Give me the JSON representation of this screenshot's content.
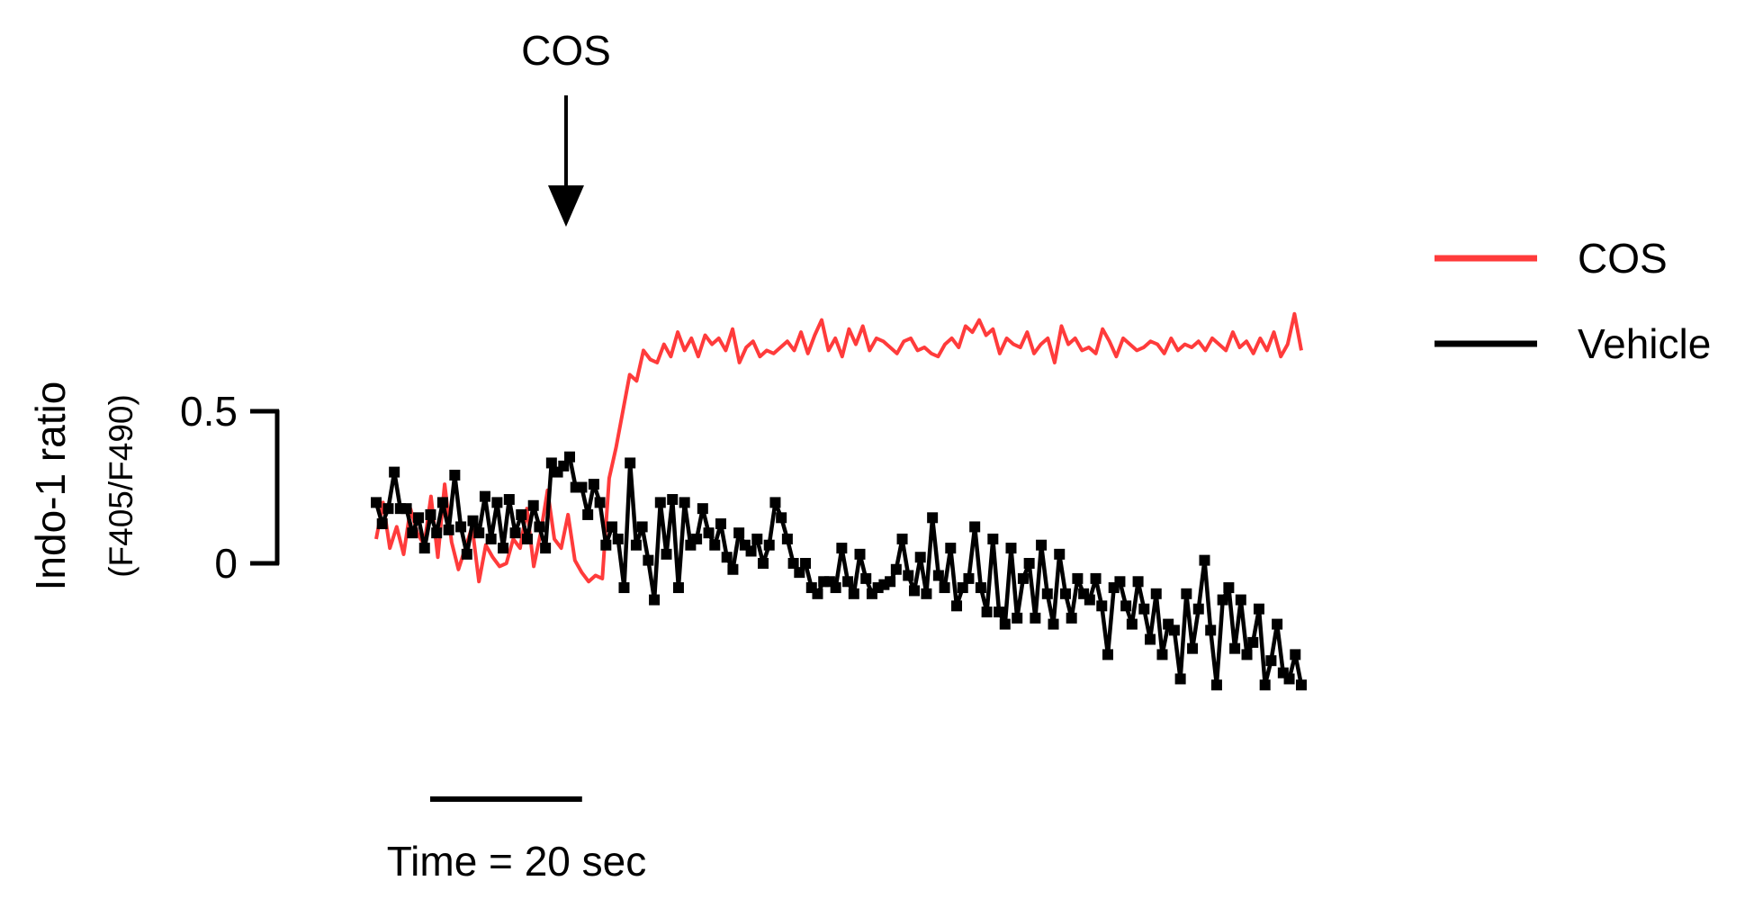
{
  "chart_data": {
    "type": "line",
    "ylabel": "Indo-1 ratio",
    "ylabel_sub": "(F405/F490)",
    "yticks": [
      {
        "value": 0,
        "label": "0"
      },
      {
        "value": 0.5,
        "label": "0.5"
      }
    ],
    "ylim": [
      -0.5,
      1.4
    ],
    "xlim": [
      0,
      134
    ],
    "time_scale_bar": {
      "label": "Time = 20 sec",
      "seconds": 20
    },
    "annotation": {
      "label": "COS",
      "x": 27.5
    },
    "legend_position": "right",
    "series": [
      {
        "name": "COS",
        "color": "#ff3b3b",
        "marker": "none",
        "values": [
          0.08,
          0.2,
          0.05,
          0.12,
          0.03,
          0.18,
          0.1,
          0.06,
          0.22,
          0.02,
          0.26,
          0.07,
          -0.02,
          0.05,
          0.12,
          -0.06,
          0.06,
          0.02,
          -0.01,
          0.0,
          0.08,
          0.05,
          0.18,
          -0.01,
          0.1,
          0.24,
          0.08,
          0.05,
          0.16,
          0.01,
          -0.03,
          -0.06,
          -0.04,
          -0.05,
          0.28,
          0.38,
          0.5,
          0.62,
          0.6,
          0.7,
          0.67,
          0.66,
          0.72,
          0.68,
          0.76,
          0.7,
          0.74,
          0.68,
          0.75,
          0.72,
          0.74,
          0.7,
          0.77,
          0.66,
          0.71,
          0.73,
          0.68,
          0.7,
          0.69,
          0.71,
          0.73,
          0.7,
          0.76,
          0.69,
          0.75,
          0.8,
          0.7,
          0.74,
          0.68,
          0.77,
          0.72,
          0.78,
          0.7,
          0.74,
          0.73,
          0.71,
          0.69,
          0.73,
          0.74,
          0.7,
          0.71,
          0.69,
          0.68,
          0.72,
          0.74,
          0.71,
          0.78,
          0.76,
          0.8,
          0.75,
          0.77,
          0.69,
          0.74,
          0.72,
          0.71,
          0.76,
          0.69,
          0.72,
          0.74,
          0.66,
          0.78,
          0.72,
          0.74,
          0.7,
          0.71,
          0.69,
          0.77,
          0.73,
          0.68,
          0.74,
          0.72,
          0.7,
          0.71,
          0.73,
          0.72,
          0.69,
          0.74,
          0.7,
          0.72,
          0.71,
          0.73,
          0.7,
          0.74,
          0.72,
          0.7,
          0.76,
          0.71,
          0.73,
          0.69,
          0.74,
          0.7,
          0.76,
          0.68,
          0.72,
          0.82,
          0.7
        ]
      },
      {
        "name": "Vehicle",
        "color": "#000000",
        "marker": "square",
        "values": [
          0.2,
          0.13,
          0.18,
          0.3,
          0.18,
          0.18,
          0.1,
          0.15,
          0.05,
          0.16,
          0.1,
          0.2,
          0.11,
          0.29,
          0.12,
          0.03,
          0.14,
          0.1,
          0.22,
          0.08,
          0.2,
          0.05,
          0.21,
          0.1,
          0.16,
          0.08,
          0.19,
          0.12,
          0.05,
          0.33,
          0.3,
          0.32,
          0.35,
          0.25,
          0.25,
          0.16,
          0.26,
          0.2,
          0.06,
          0.12,
          0.08,
          -0.08,
          0.33,
          0.06,
          0.12,
          0.01,
          -0.12,
          0.2,
          0.03,
          0.21,
          -0.08,
          0.2,
          0.06,
          0.08,
          0.18,
          0.1,
          0.06,
          0.13,
          0.02,
          -0.02,
          0.1,
          0.06,
          0.04,
          0.08,
          0.0,
          0.06,
          0.2,
          0.15,
          0.08,
          0.0,
          -0.03,
          0.0,
          -0.08,
          -0.1,
          -0.06,
          -0.06,
          -0.08,
          0.05,
          -0.06,
          -0.1,
          0.03,
          -0.05,
          -0.1,
          -0.08,
          -0.07,
          -0.06,
          -0.02,
          0.08,
          -0.04,
          -0.09,
          0.02,
          -0.1,
          0.15,
          -0.04,
          -0.08,
          0.05,
          -0.14,
          -0.08,
          -0.05,
          0.12,
          -0.08,
          -0.16,
          0.08,
          -0.16,
          -0.2,
          0.05,
          -0.18,
          -0.05,
          0.0,
          -0.18,
          0.06,
          -0.1,
          -0.2,
          0.03,
          -0.1,
          -0.18,
          -0.05,
          -0.1,
          -0.12,
          -0.05,
          -0.14,
          -0.3,
          -0.08,
          -0.06,
          -0.14,
          -0.2,
          -0.06,
          -0.15,
          -0.25,
          -0.1,
          -0.3,
          -0.2,
          -0.22,
          -0.38,
          -0.1,
          -0.28,
          -0.15,
          0.01,
          -0.22,
          -0.4,
          -0.12,
          -0.08,
          -0.28,
          -0.12,
          -0.3,
          -0.26,
          -0.15,
          -0.4,
          -0.32,
          -0.2,
          -0.36,
          -0.38,
          -0.3,
          -0.4
        ]
      }
    ]
  }
}
